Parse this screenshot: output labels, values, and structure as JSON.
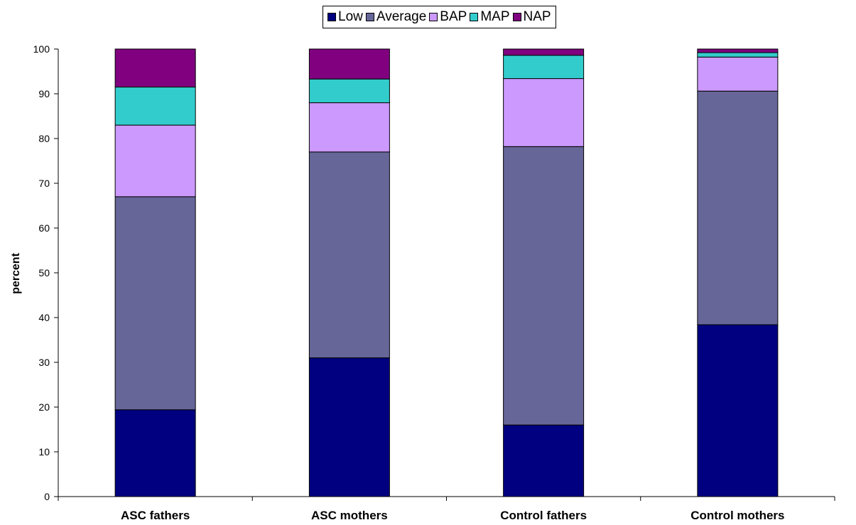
{
  "chart_data": {
    "type": "bar",
    "stacked": true,
    "categories": [
      "ASC fathers",
      "ASC mothers",
      "Control fathers",
      "Control mothers"
    ],
    "series": [
      {
        "name": "Low",
        "color": "#000080",
        "values": [
          19.4,
          31.0,
          16.0,
          38.4
        ]
      },
      {
        "name": "Average",
        "color": "#666699",
        "values": [
          47.6,
          46.0,
          62.2,
          52.2
        ]
      },
      {
        "name": "BAP",
        "color": "#CC99FF",
        "values": [
          16.0,
          11.0,
          15.2,
          7.6
        ]
      },
      {
        "name": "MAP",
        "color": "#33CCCC",
        "values": [
          8.5,
          5.3,
          5.2,
          1.0
        ]
      },
      {
        "name": "NAP",
        "color": "#800080",
        "values": [
          8.5,
          6.7,
          1.4,
          0.8
        ]
      }
    ],
    "title": "",
    "xlabel": "",
    "ylabel": "percent",
    "ylim": [
      0,
      100
    ],
    "yticks": [
      "0",
      "10",
      "20",
      "30",
      "40",
      "50",
      "60",
      "70",
      "80",
      "90",
      "100"
    ],
    "grid": false,
    "legend_position": "top-center"
  }
}
